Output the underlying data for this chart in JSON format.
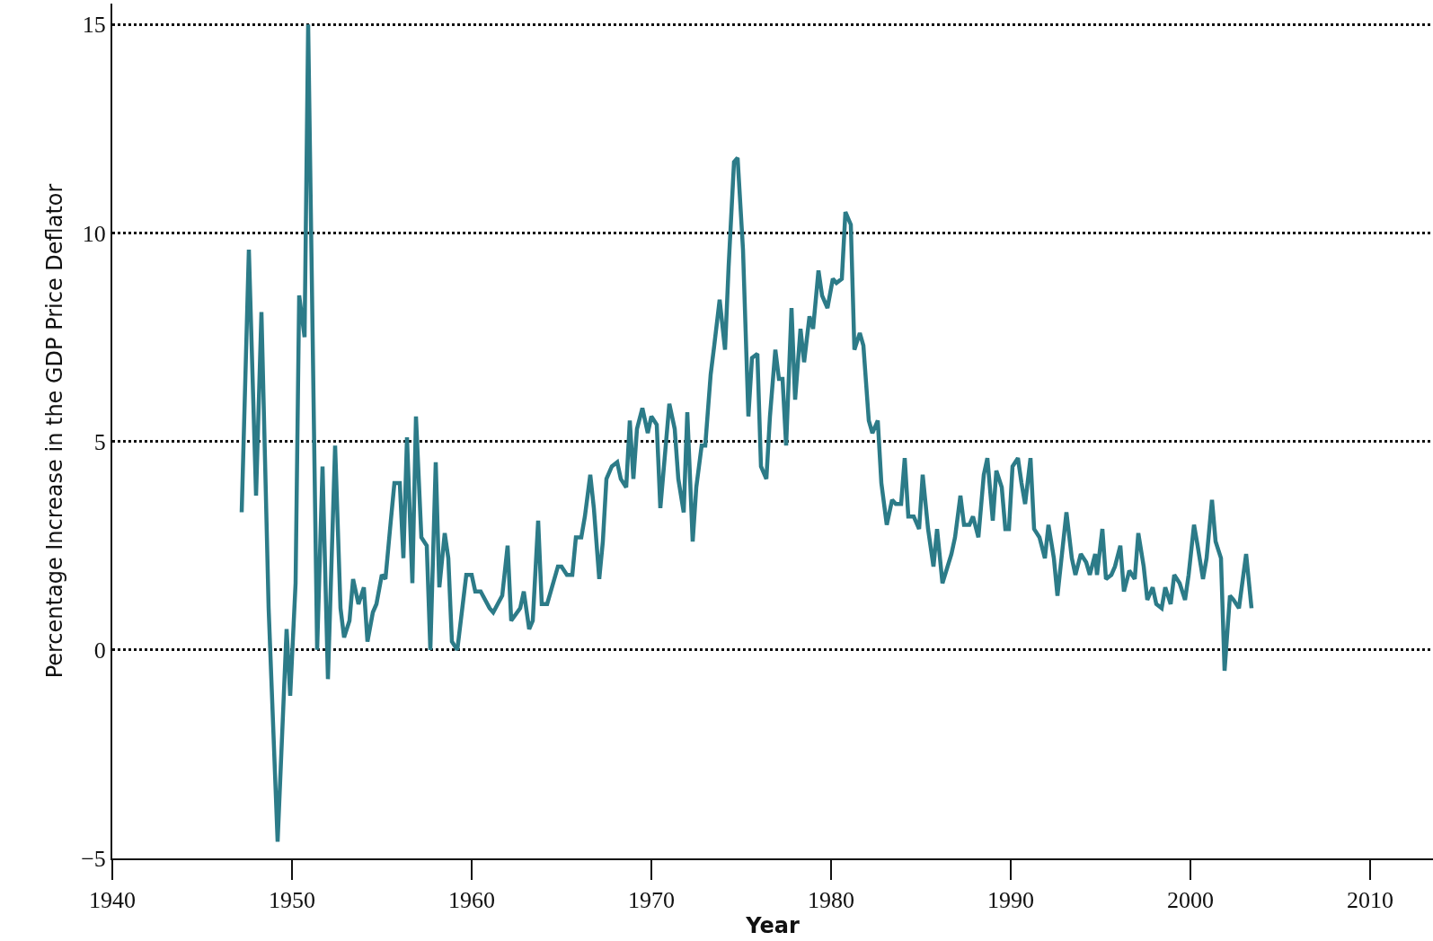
{
  "chart_data": {
    "type": "line",
    "xlabel": "Year",
    "ylabel": "Percentage Increase in the GDP Price Deflator",
    "x": [
      1947.2,
      1947.6,
      1948.0,
      1948.3,
      1948.7,
      1949.2,
      1949.7,
      1949.9,
      1950.2,
      1950.4,
      1950.7,
      1950.9,
      1951.4,
      1951.7,
      1952.0,
      1952.4,
      1952.7,
      1952.9,
      1953.2,
      1953.4,
      1953.7,
      1954.0,
      1954.2,
      1954.5,
      1954.7,
      1955.0,
      1955.2,
      1955.5,
      1955.7,
      1956.0,
      1956.2,
      1956.4,
      1956.7,
      1956.9,
      1957.2,
      1957.5,
      1957.7,
      1958.0,
      1958.2,
      1958.5,
      1958.7,
      1958.9,
      1959.2,
      1959.7,
      1960.0,
      1960.2,
      1960.5,
      1961.0,
      1961.2,
      1961.7,
      1962.0,
      1962.2,
      1962.7,
      1962.9,
      1963.2,
      1963.4,
      1963.7,
      1963.9,
      1964.2,
      1964.8,
      1965.0,
      1965.3,
      1965.6,
      1965.8,
      1966.1,
      1966.3,
      1966.6,
      1966.8,
      1967.1,
      1967.3,
      1967.5,
      1967.8,
      1968.1,
      1968.3,
      1968.6,
      1968.8,
      1969.0,
      1969.2,
      1969.5,
      1969.8,
      1970.0,
      1970.3,
      1970.5,
      1971.0,
      1971.3,
      1971.5,
      1971.8,
      1972.0,
      1972.3,
      1972.5,
      1972.8,
      1973.0,
      1973.3,
      1973.5,
      1973.8,
      1974.1,
      1974.3,
      1974.6,
      1974.8,
      1975.1,
      1975.4,
      1975.6,
      1975.9,
      1976.1,
      1976.4,
      1976.6,
      1976.9,
      1977.1,
      1977.3,
      1977.5,
      1977.8,
      1978.0,
      1978.3,
      1978.5,
      1978.8,
      1979.0,
      1979.3,
      1979.5,
      1979.8,
      1980.1,
      1980.3,
      1980.6,
      1980.8,
      1981.1,
      1981.3,
      1981.6,
      1981.8,
      1982.1,
      1982.3,
      1982.6,
      1982.8,
      1983.1,
      1983.4,
      1983.6,
      1983.9,
      1984.1,
      1984.3,
      1984.6,
      1984.9,
      1985.1,
      1985.4,
      1985.7,
      1985.9,
      1986.2,
      1986.7,
      1986.9,
      1987.2,
      1987.4,
      1987.7,
      1987.9,
      1988.2,
      1988.5,
      1988.7,
      1989.0,
      1989.2,
      1989.5,
      1989.7,
      1989.9,
      1990.1,
      1990.4,
      1990.6,
      1990.8,
      1991.1,
      1991.3,
      1991.6,
      1991.9,
      1992.1,
      1992.4,
      1992.6,
      1992.9,
      1993.1,
      1993.4,
      1993.6,
      1993.9,
      1994.2,
      1994.4,
      1994.7,
      1994.8,
      1995.1,
      1995.3,
      1995.6,
      1995.8,
      1996.1,
      1996.3,
      1996.6,
      1996.9,
      1997.1,
      1997.4,
      1997.6,
      1997.9,
      1998.1,
      1998.4,
      1998.6,
      1998.9,
      1999.1,
      1999.4,
      1999.7,
      1999.9,
      2000.2,
      2000.4,
      2000.7,
      2000.9,
      2001.2,
      2001.4,
      2001.7,
      2001.9,
      2002.2,
      2002.4,
      2002.7,
      2003.1,
      2003.4
    ],
    "series": [
      {
        "color": "#2c7b88",
        "values": [
          3.3,
          9.6,
          3.7,
          8.1,
          1.0,
          -4.6,
          0.5,
          -1.1,
          1.6,
          8.5,
          7.5,
          15.0,
          0,
          4.4,
          -0.7,
          4.9,
          1.0,
          0.3,
          0.7,
          1.7,
          1.1,
          1.5,
          0.2,
          0.9,
          1.1,
          1.8,
          1.7,
          3.1,
          4.0,
          4.0,
          2.2,
          5.1,
          1.6,
          5.6,
          2.7,
          2.5,
          0,
          4.5,
          1.5,
          2.8,
          2.2,
          0.2,
          0,
          1.8,
          1.8,
          1.4,
          1.4,
          1.0,
          0.9,
          1.3,
          2.5,
          0.7,
          1.0,
          1.4,
          0.5,
          0.7,
          3.1,
          1.1,
          1.1,
          2.0,
          2.0,
          1.8,
          1.8,
          2.7,
          2.7,
          3.2,
          4.2,
          3.4,
          1.7,
          2.6,
          4.1,
          4.4,
          4.5,
          4.1,
          3.9,
          5.5,
          4.1,
          5.3,
          5.8,
          5.2,
          5.6,
          5.4,
          3.4,
          5.9,
          5.3,
          4.1,
          3.3,
          5.7,
          2.6,
          3.9,
          4.9,
          4.9,
          6.6,
          7.3,
          8.4,
          7.2,
          9.2,
          11.7,
          11.8,
          9.6,
          5.6,
          7.0,
          7.1,
          4.4,
          4.1,
          5.6,
          7.2,
          6.5,
          6.5,
          4.9,
          8.2,
          6.0,
          7.7,
          6.9,
          8.0,
          7.7,
          9.1,
          8.5,
          8.2,
          8.9,
          8.8,
          8.9,
          10.5,
          10.2,
          7.2,
          7.6,
          7.3,
          5.5,
          5.2,
          5.5,
          4.0,
          3.0,
          3.6,
          3.5,
          3.5,
          4.6,
          3.2,
          3.2,
          2.9,
          4.2,
          2.9,
          2.0,
          2.9,
          1.6,
          2.3,
          2.7,
          3.7,
          3.0,
          3.0,
          3.2,
          2.7,
          4.2,
          4.6,
          3.1,
          4.3,
          3.9,
          2.9,
          2.9,
          4.4,
          4.6,
          4.0,
          3.5,
          4.6,
          2.9,
          2.7,
          2.2,
          3.0,
          2.2,
          1.3,
          2.5,
          3.3,
          2.2,
          1.8,
          2.3,
          2.1,
          1.8,
          2.3,
          1.8,
          2.9,
          1.7,
          1.8,
          2.0,
          2.5,
          1.4,
          1.9,
          1.7,
          2.8,
          2.0,
          1.2,
          1.5,
          1.1,
          1.0,
          1.5,
          1.1,
          1.8,
          1.6,
          1.2,
          1.8,
          3.0,
          2.5,
          1.7,
          2.2,
          3.6,
          2.6,
          2.2,
          -0.5,
          1.3,
          1.2,
          1.0,
          2.3,
          1.0
        ]
      }
    ],
    "xlim": [
      1940,
      2013.5
    ],
    "xticks": [
      1940,
      1950,
      1960,
      1970,
      1980,
      1990,
      2000,
      2010
    ],
    "ylim": [
      -5,
      15.5
    ],
    "yticks": [
      {
        "value": -5,
        "label": "−5"
      },
      0,
      5,
      10,
      15
    ],
    "grid": "y",
    "marker": "none",
    "line_style": "solid",
    "legend": false
  }
}
